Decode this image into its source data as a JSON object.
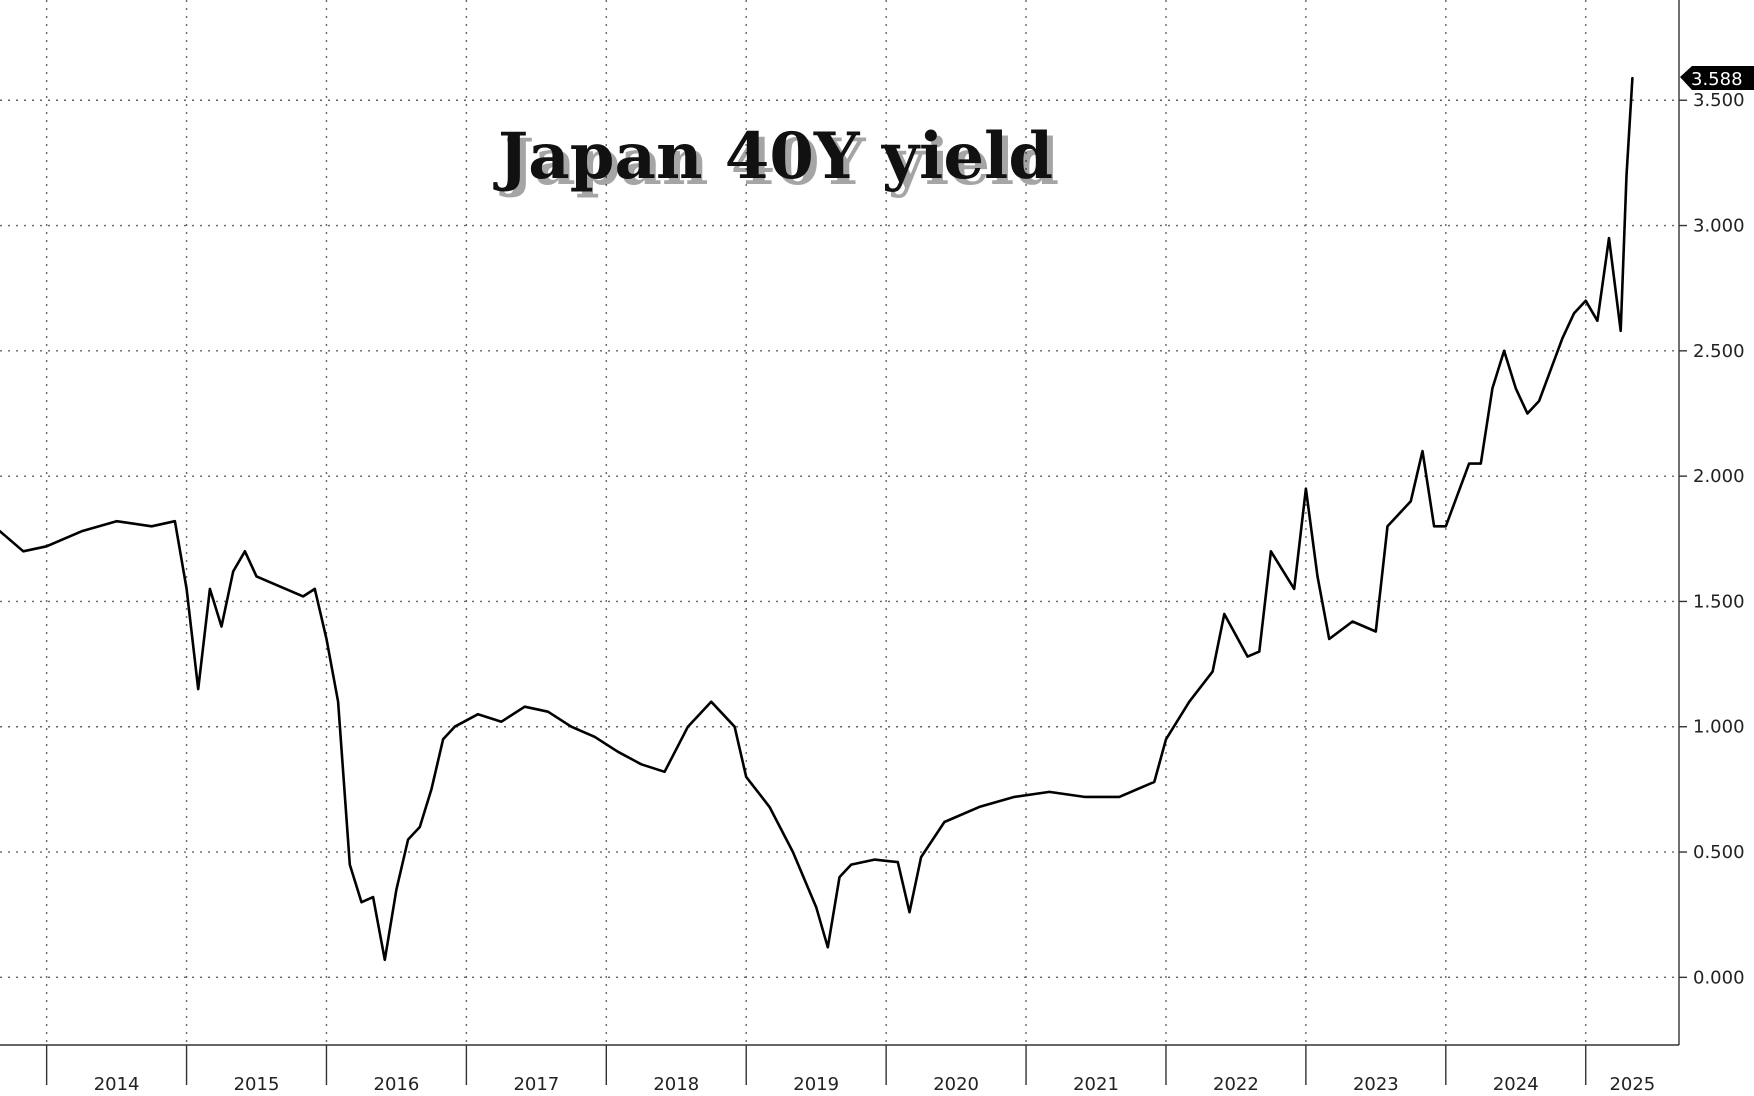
{
  "chart_data": {
    "type": "line",
    "title": "Japan 40Y yield",
    "xlabel": "",
    "ylabel": "",
    "x_tick_labels": [
      "2014",
      "2015",
      "2016",
      "2017",
      "2018",
      "2019",
      "2020",
      "2021",
      "2022",
      "2023",
      "2024",
      "2025"
    ],
    "y_tick_labels": [
      "0.000",
      "0.500",
      "1.000",
      "1.500",
      "2.000",
      "2.500",
      "3.000",
      "3.500"
    ],
    "ylim": [
      -0.27,
      3.9
    ],
    "xlim": [
      "2013-09",
      "2025-09"
    ],
    "grid": true,
    "axis_side": "right",
    "last_value_label": "3.588",
    "series": [
      {
        "color": "#000000",
        "x": [
          "2013-09",
          "2013-11",
          "2014-01",
          "2014-04",
          "2014-07",
          "2014-10",
          "2014-12",
          "2015-01",
          "2015-02",
          "2015-03",
          "2015-04",
          "2015-05",
          "2015-06",
          "2015-07",
          "2015-09",
          "2015-11",
          "2015-12",
          "2016-01",
          "2016-02",
          "2016-03",
          "2016-04",
          "2016-05",
          "2016-06",
          "2016-07",
          "2016-08",
          "2016-09",
          "2016-10",
          "2016-11",
          "2016-12",
          "2017-02",
          "2017-04",
          "2017-06",
          "2017-08",
          "2017-10",
          "2017-12",
          "2018-02",
          "2018-04",
          "2018-06",
          "2018-08",
          "2018-10",
          "2018-12",
          "2019-01",
          "2019-03",
          "2019-05",
          "2019-07",
          "2019-08",
          "2019-09",
          "2019-10",
          "2019-12",
          "2020-02",
          "2020-03",
          "2020-04",
          "2020-06",
          "2020-09",
          "2020-12",
          "2021-03",
          "2021-06",
          "2021-09",
          "2021-12",
          "2022-01",
          "2022-03",
          "2022-05",
          "2022-06",
          "2022-08",
          "2022-09",
          "2022-10",
          "2022-12",
          "2023-01",
          "2023-02",
          "2023-03",
          "2023-05",
          "2023-07",
          "2023-08",
          "2023-10",
          "2023-11",
          "2023-12",
          "2024-01",
          "2024-03",
          "2024-04",
          "2024-05",
          "2024-06",
          "2024-07",
          "2024-08",
          "2024-09",
          "2024-11",
          "2024-12",
          "2025-01",
          "2025-02",
          "2025-03",
          "2025-04",
          "2025-04",
          "2025-05"
        ],
        "y": [
          1.78,
          1.7,
          1.72,
          1.78,
          1.82,
          1.8,
          1.82,
          1.55,
          1.15,
          1.55,
          1.4,
          1.62,
          1.7,
          1.6,
          1.56,
          1.52,
          1.55,
          1.35,
          1.1,
          0.45,
          0.3,
          0.32,
          0.07,
          0.35,
          0.55,
          0.6,
          0.75,
          0.95,
          1.0,
          1.05,
          1.02,
          1.08,
          1.06,
          1.0,
          0.96,
          0.9,
          0.85,
          0.82,
          1.0,
          1.1,
          1.0,
          0.8,
          0.68,
          0.5,
          0.28,
          0.12,
          0.4,
          0.45,
          0.47,
          0.46,
          0.26,
          0.48,
          0.62,
          0.68,
          0.72,
          0.74,
          0.72,
          0.72,
          0.78,
          0.95,
          1.1,
          1.22,
          1.45,
          1.28,
          1.3,
          1.7,
          1.55,
          1.95,
          1.6,
          1.35,
          1.42,
          1.38,
          1.8,
          1.9,
          2.1,
          1.8,
          1.8,
          2.05,
          2.05,
          2.35,
          2.5,
          2.35,
          2.25,
          2.3,
          2.55,
          2.65,
          2.7,
          2.62,
          2.95,
          2.58,
          3.2,
          3.588
        ]
      }
    ]
  }
}
